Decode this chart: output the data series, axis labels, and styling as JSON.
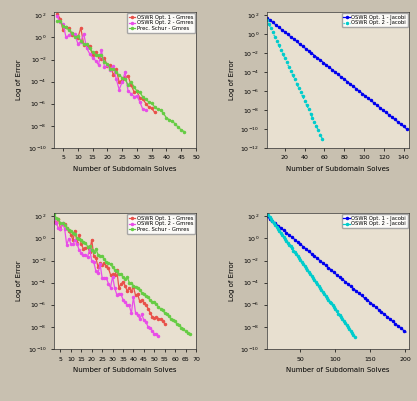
{
  "top_left": {
    "xlabel": "Number of Subdomain Solves",
    "ylabel": "Log of Error",
    "xlim": [
      2,
      50
    ],
    "ylim": [
      1e-10,
      200.0
    ],
    "xticks": [
      5,
      10,
      15,
      20,
      25,
      30,
      35,
      40,
      45,
      50
    ],
    "legend": [
      "OSWR Opt. 1 - Gmres",
      "OSWR Opt. 2 - Gmres",
      "Prec. Schur - Gmres"
    ],
    "colors": [
      "#e8514a",
      "#e84de8",
      "#66cc44"
    ],
    "bg_color": "#e8e0d0"
  },
  "top_right": {
    "xlabel": "Number of Subdomain Solves",
    "ylabel": "Log of Error",
    "xlim": [
      2,
      145
    ],
    "ylim": [
      1e-12,
      200.0
    ],
    "xticks": [
      20,
      40,
      60,
      80,
      100,
      120,
      140
    ],
    "legend": [
      "OSWR Opt. 1 - Jacobi",
      "OSWR Opt. 2 - Jacobi"
    ],
    "colors": [
      "#0000ee",
      "#00cccc"
    ],
    "bg_color": "#e8e0d0"
  },
  "bot_left": {
    "xlabel": "Number of Subdomain Solves",
    "ylabel": "Log of Error",
    "xlim": [
      2,
      70
    ],
    "ylim": [
      1e-10,
      200.0
    ],
    "xticks": [
      5,
      10,
      15,
      20,
      25,
      30,
      35,
      40,
      45,
      50,
      55,
      60,
      65,
      70
    ],
    "legend": [
      "OSWR Opt. 1 - Gmres",
      "OSWR Opt. 2 - Gmres",
      "Prec. Schur - Gmres"
    ],
    "colors": [
      "#e8514a",
      "#e84de8",
      "#66cc44"
    ],
    "bg_color": "#e8e0d0"
  },
  "bot_right": {
    "xlabel": "Number of Subdomain Solves",
    "ylabel": "Log of Error",
    "xlim": [
      2,
      205
    ],
    "ylim": [
      1e-10,
      200.0
    ],
    "xticks": [
      50,
      100,
      150,
      200
    ],
    "legend": [
      "OSWR Opt. 1 - Jacobi",
      "OSWR Opt. 2 - Jacobi"
    ],
    "colors": [
      "#0000ee",
      "#00cccc"
    ],
    "bg_color": "#e8e0d0"
  },
  "fig_bg": "#c8c0b0"
}
